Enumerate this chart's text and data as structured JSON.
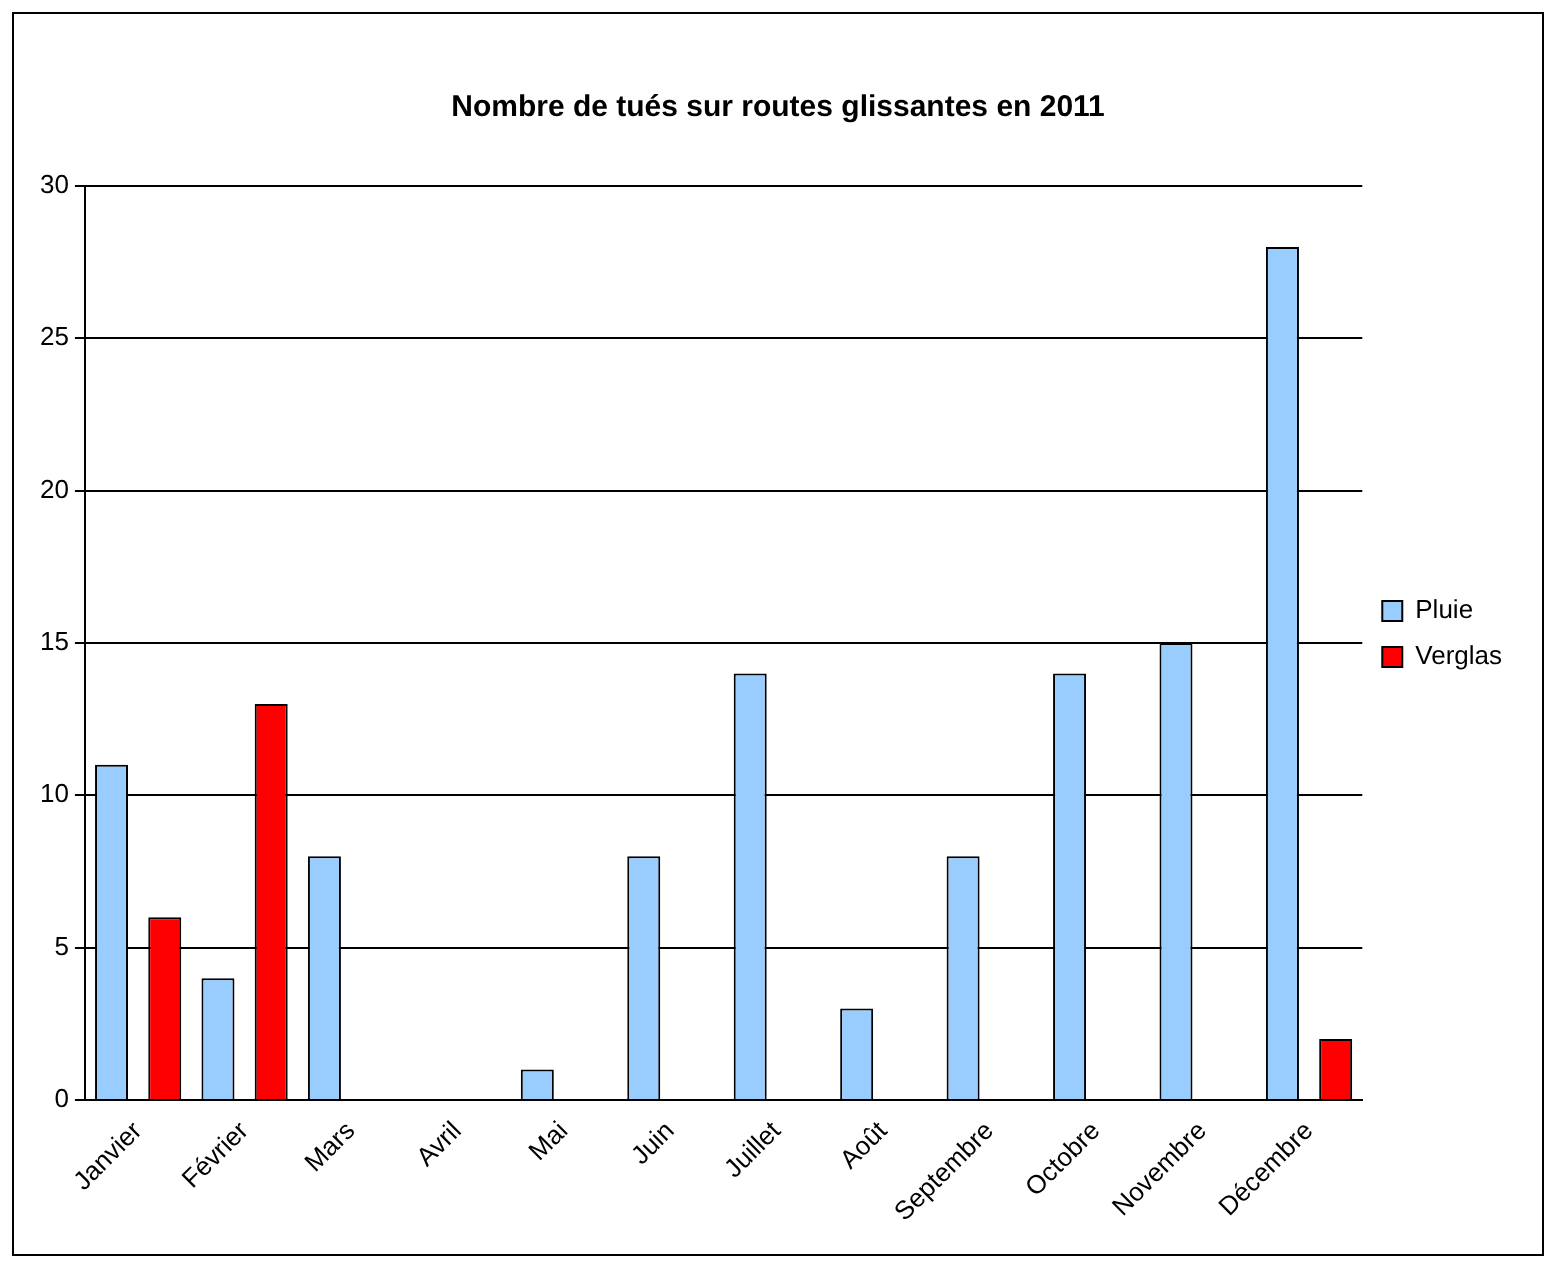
{
  "chart_data": {
    "type": "bar",
    "title": "Nombre de tués sur routes glissantes en 2011",
    "categories": [
      "Janvier",
      "Février",
      "Mars",
      "Avril",
      "Mai",
      "Juin",
      "Juillet",
      "Août",
      "Septembre",
      "Octobre",
      "Novembre",
      "Décembre"
    ],
    "series": [
      {
        "name": "Pluie",
        "color": "#99ccff",
        "values": [
          11,
          4,
          8,
          null,
          1,
          8,
          14,
          3,
          8,
          14,
          15,
          28
        ]
      },
      {
        "name": "Verglas",
        "color": "#ff0000",
        "values": [
          6,
          13,
          null,
          null,
          null,
          null,
          null,
          null,
          null,
          null,
          null,
          2
        ]
      }
    ],
    "ylim": [
      0,
      30
    ],
    "yticks": [
      0,
      5,
      10,
      15,
      20,
      25,
      30
    ],
    "grid": "y",
    "legend": "right"
  }
}
